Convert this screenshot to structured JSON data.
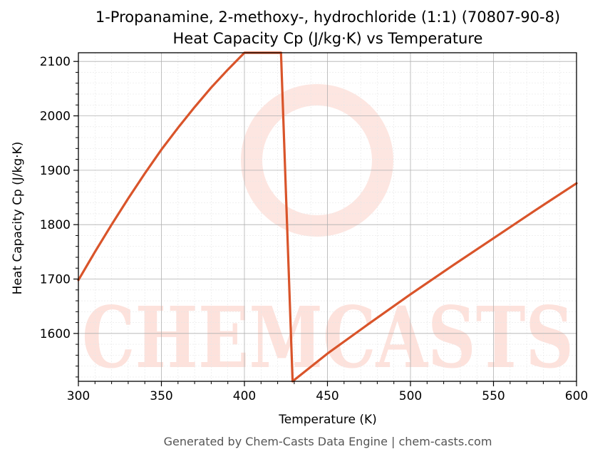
{
  "chart_data": {
    "type": "line",
    "title": "1-Propanamine, 2-methoxy-, hydrochloride (1:1) (70807-90-8)",
    "subtitle": "Heat Capacity Cp (J/kg·K) vs Temperature",
    "xlabel": "Temperature (K)",
    "ylabel": "Heat Capacity Cp (J/kg·K)",
    "xlim": [
      300,
      600
    ],
    "ylim": [
      1512,
      2116
    ],
    "xticks": [
      300,
      350,
      400,
      450,
      500,
      550,
      600
    ],
    "yticks": [
      1600,
      1700,
      1800,
      1900,
      2000,
      2100
    ],
    "grid": true,
    "series": [
      {
        "color": "#d9542a",
        "x": [
          300,
          310,
          320,
          330,
          340,
          350,
          360,
          370,
          380,
          390,
          400,
          410,
          422,
          429,
          450,
          475,
          500,
          525,
          550,
          575,
          600
        ],
        "y": [
          1698,
          1750,
          1800,
          1848,
          1894,
          1938,
          1978,
          2016,
          2052,
          2085,
          2116,
          2116,
          2116,
          1512,
          1563,
          1618,
          1672,
          1724,
          1775,
          1826,
          1876
        ]
      }
    ]
  },
  "watermark": {
    "text": "CHEMCASTS",
    "color": "#fde2dc"
  },
  "footer": "Generated by Chem-Casts Data Engine | chem-casts.com"
}
